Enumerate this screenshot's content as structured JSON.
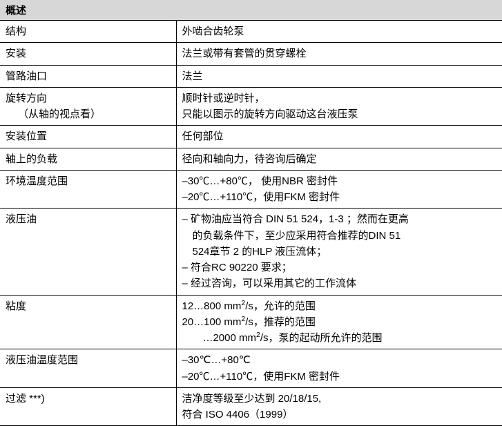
{
  "header": "概述",
  "rows": [
    {
      "label": "结构",
      "value_lines": [
        "外啮合齿轮泵"
      ]
    },
    {
      "label": "安装",
      "value_lines": [
        "法兰或带有套管的贯穿螺栓"
      ]
    },
    {
      "label": "管路油口",
      "value_lines": [
        "法兰"
      ]
    },
    {
      "label": "旋转方向",
      "label_sub": "（从轴的视点看）",
      "value_lines": [
        "顺时针或逆时针，",
        "只能以图示的旋转方向驱动这台液压泵"
      ]
    },
    {
      "label": "安装位置",
      "value_lines": [
        "任何部位"
      ]
    },
    {
      "label": "轴上的负载",
      "value_lines": [
        "径向和轴向力，待咨询后确定"
      ]
    },
    {
      "label": "环境温度范围",
      "value_lines": [
        "–30℃…+80℃， 使用NBR 密封件",
        "–20℃…+110℃，使用FKM 密封件"
      ]
    },
    {
      "label": "液压油",
      "value_lines": [
        "– 矿物油应当符合 DIN 51 524，1-3 ；然而在更高",
        " 的负载条件下，至少应采用符合推荐的DIN 51",
        " 524章节 2 的HLP 液压流体；",
        "– 符合RC 90220 要求；",
        "– 经过咨询，可以采用其它的工作流体"
      ]
    },
    {
      "label": "粘度",
      "value_html": [
        "12…800 mm<sup>2</sup>/s，允许的范围",
        "20…100 mm<sup>2</sup>/s，推荐的范围",
        "  …2000 mm<sup>2</sup>/s，泵的起动所允许的范围"
      ]
    },
    {
      "label": "液压油温度范围",
      "value_lines": [
        "–30℃…+80℃",
        "–20℃…+110℃，使用FKM 密封件"
      ]
    },
    {
      "label": "过滤 ***)",
      "value_lines": [
        "洁净度等级至少达到 20/18/15,",
        "符合 ISO 4406（1999）"
      ]
    }
  ]
}
